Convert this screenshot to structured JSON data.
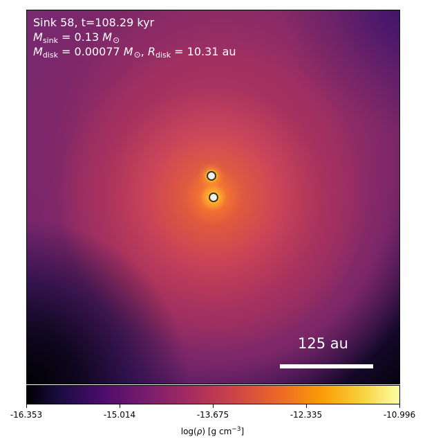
{
  "figure": {
    "annotations": {
      "title": "Sink 58, t=108.29 kyr",
      "sink_mass_symbol": "M",
      "sink_mass_subscript": "sink",
      "sink_mass_value": " = 0.13 ",
      "disk_mass_symbol": "M",
      "disk_mass_subscript": "disk",
      "disk_mass_value": " = 0.00077 ",
      "disk_radius_symbol": "R",
      "disk_radius_subscript": "disk",
      "disk_radius_value": " = 10.31 au",
      "solar_symbol": "M",
      "solar_subscript": "⊙"
    },
    "scale_bar": {
      "label": "125 au"
    },
    "colorbar": {
      "ticks": [
        "-16.353",
        "-15.014",
        "-13.675",
        "-12.335",
        "-10.996"
      ],
      "label_prefix": "log(",
      "label_symbol": "ρ",
      "label_suffix": ") [g cm",
      "label_power": "−3",
      "label_close": "]"
    },
    "markers": [
      {
        "name": "sink-marker-1"
      },
      {
        "name": "sink-marker-2"
      }
    ],
    "colors": {
      "colormap": "inferno",
      "marker_fill": "#f0f0f0",
      "marker_outline": "#3e3316",
      "annotation_text": "#ffffff"
    }
  }
}
